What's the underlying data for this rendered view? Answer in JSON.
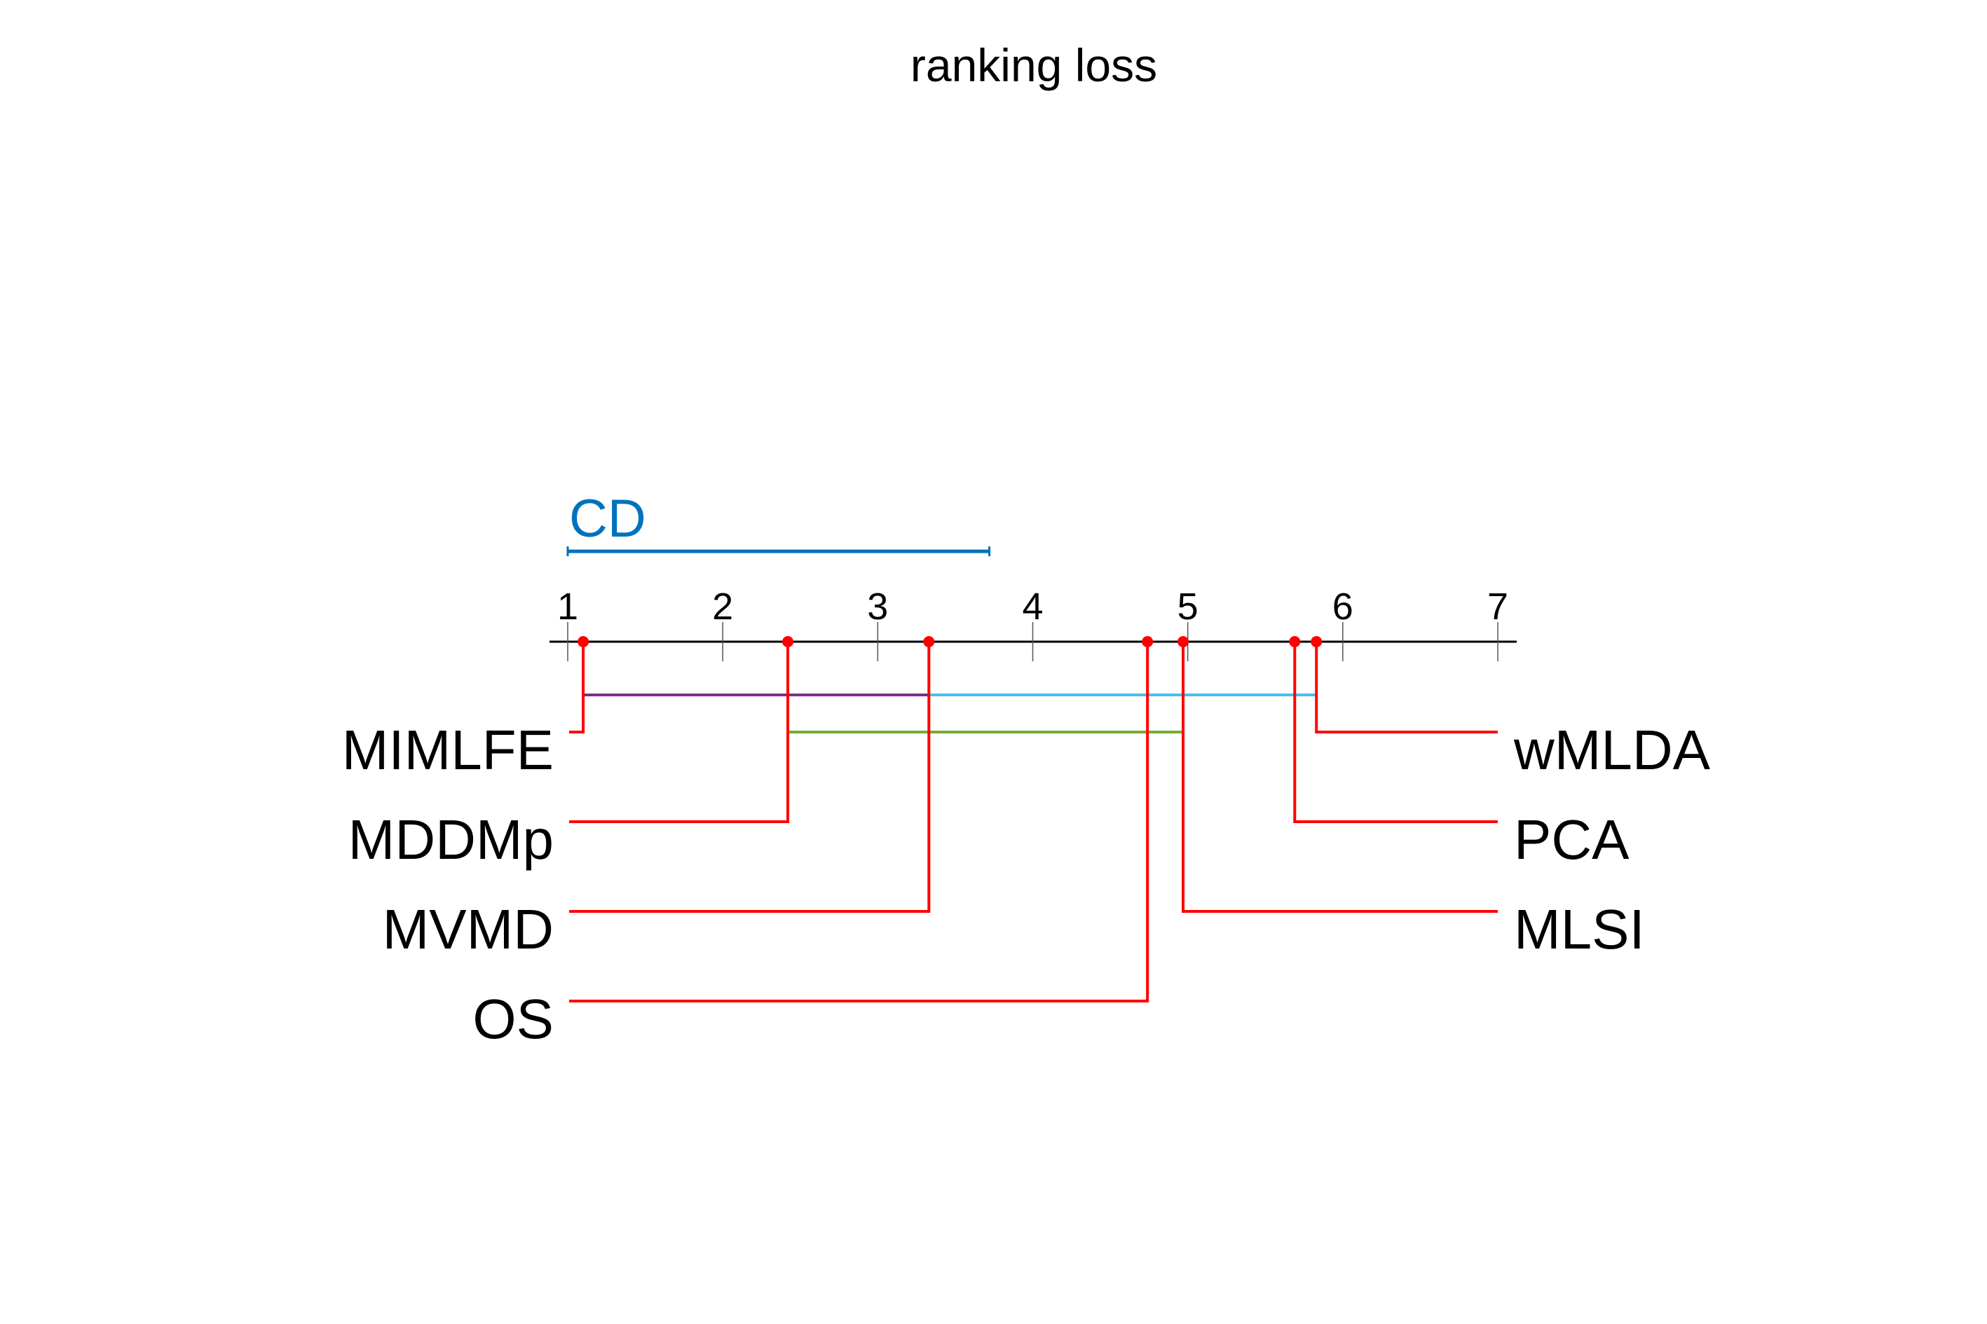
{
  "chart_data": {
    "type": "critical-difference-diagram",
    "title": "ranking loss",
    "axis": {
      "min": 1,
      "max": 7,
      "ticks": [
        1,
        2,
        3,
        4,
        5,
        6,
        7
      ],
      "tick_labels": [
        "1",
        "2",
        "3",
        "4",
        "5",
        "6",
        "7"
      ]
    },
    "cd": {
      "label": "CD",
      "value": 2.72,
      "color": "#0072bd"
    },
    "methods": [
      {
        "name": "MIMLFE",
        "rank": 1.1,
        "side": "left"
      },
      {
        "name": "MDDMp",
        "rank": 2.42,
        "side": "left"
      },
      {
        "name": "MVMD",
        "rank": 3.33,
        "side": "left"
      },
      {
        "name": "OS",
        "rank": 4.74,
        "side": "left"
      },
      {
        "name": "wMLDA",
        "rank": 5.83,
        "side": "right"
      },
      {
        "name": "PCA",
        "rank": 5.69,
        "side": "right"
      },
      {
        "name": "MLSI",
        "rank": 4.97,
        "side": "right"
      }
    ],
    "groups": [
      {
        "from": 1.1,
        "to": 3.33,
        "color": "#7e2f8e"
      },
      {
        "from": 3.33,
        "to": 5.83,
        "color": "#4dbeee"
      },
      {
        "from": 2.42,
        "to": 4.97,
        "color": "#77ac30"
      }
    ],
    "colors": {
      "axis": "#000000",
      "connector": "#ff0000",
      "point": "#ff0000"
    }
  }
}
